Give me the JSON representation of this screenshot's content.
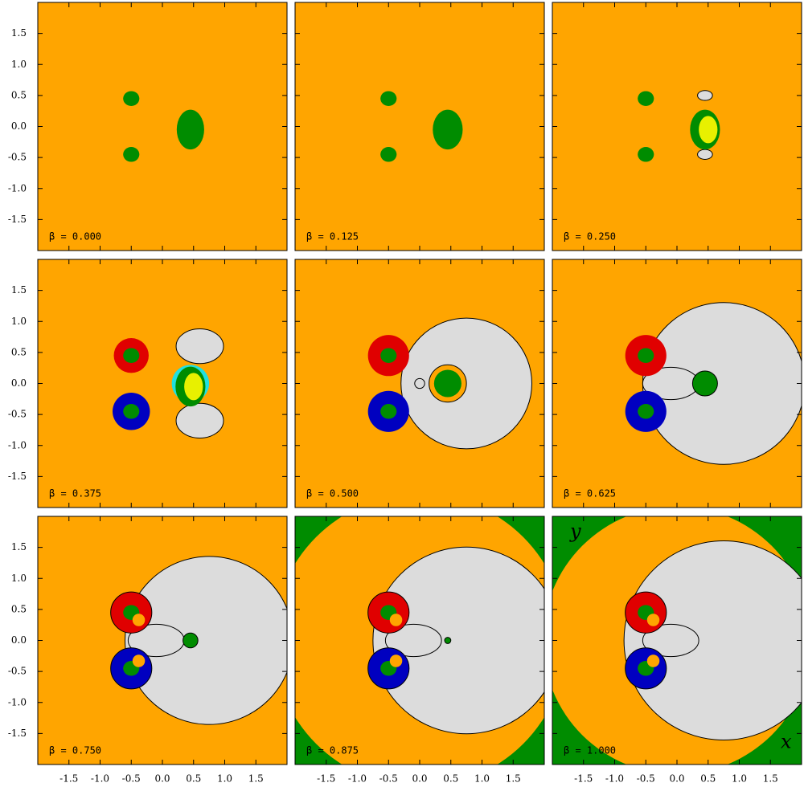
{
  "chart_data": [
    {
      "type": "basin",
      "annotation": "β = 0.000",
      "xlim": [
        -2,
        2
      ],
      "ylim": [
        -2,
        2
      ],
      "xticks": [
        -1.5,
        {
          "value": -1,
          "label": "-1.0"
        },
        -0.5,
        {
          "value": 0,
          "label": "0.0"
        },
        0.5,
        {
          "value": 1,
          "label": "1.0"
        },
        1.5
      ],
      "yticks": [
        -1.5,
        {
          "value": -1,
          "label": "-1.0"
        },
        -0.5,
        {
          "value": 0,
          "label": "0.0"
        },
        0.5,
        {
          "value": 1,
          "label": "1.0"
        },
        1.5
      ]
    },
    {
      "type": "basin",
      "annotation": "β = 0.125",
      "xlim": [
        -2,
        2
      ],
      "ylim": [
        -2,
        2
      ],
      "xticks": [
        -1.5,
        {
          "value": -1,
          "label": "-1.0"
        },
        -0.5,
        {
          "value": 0,
          "label": "0.0"
        },
        0.5,
        {
          "value": 1,
          "label": "1.0"
        },
        1.5
      ],
      "yticks": [
        -1.5,
        {
          "value": -1,
          "label": "-1.0"
        },
        -0.5,
        {
          "value": 0,
          "label": "0.0"
        },
        0.5,
        {
          "value": 1,
          "label": "1.0"
        },
        1.5
      ]
    },
    {
      "type": "basin",
      "annotation": "β = 0.250",
      "xlim": [
        -2,
        2
      ],
      "ylim": [
        -2,
        2
      ],
      "xticks": [
        -1.5,
        {
          "value": -1,
          "label": "-1.0"
        },
        -0.5,
        {
          "value": 0,
          "label": "0.0"
        },
        0.5,
        {
          "value": 1,
          "label": "1.0"
        },
        1.5
      ],
      "yticks": [
        -1.5,
        {
          "value": -1,
          "label": "-1.0"
        },
        -0.5,
        {
          "value": 0,
          "label": "0.0"
        },
        0.5,
        {
          "value": 1,
          "label": "1.0"
        },
        1.5
      ]
    },
    {
      "type": "basin",
      "annotation": "β = 0.375",
      "xlim": [
        -2,
        2
      ],
      "ylim": [
        -2,
        2
      ],
      "xticks": [
        -1.5,
        {
          "value": -1,
          "label": "-1.0"
        },
        -0.5,
        {
          "value": 0,
          "label": "0.0"
        },
        0.5,
        {
          "value": 1,
          "label": "1.0"
        },
        1.5
      ],
      "yticks": [
        -1.5,
        {
          "value": -1,
          "label": "-1.0"
        },
        -0.5,
        {
          "value": 0,
          "label": "0.0"
        },
        0.5,
        {
          "value": 1,
          "label": "1.0"
        },
        1.5
      ]
    },
    {
      "type": "basin",
      "annotation": "β = 0.500",
      "xlim": [
        -2,
        2
      ],
      "ylim": [
        -2,
        2
      ],
      "xticks": [
        -1.5,
        {
          "value": -1,
          "label": "-1.0"
        },
        -0.5,
        {
          "value": 0,
          "label": "0.0"
        },
        0.5,
        {
          "value": 1,
          "label": "1.0"
        },
        1.5
      ],
      "yticks": [
        -1.5,
        {
          "value": -1,
          "label": "-1.0"
        },
        -0.5,
        {
          "value": 0,
          "label": "0.0"
        },
        0.5,
        {
          "value": 1,
          "label": "1.0"
        },
        1.5
      ]
    },
    {
      "type": "basin",
      "annotation": "β = 0.625",
      "xlim": [
        -2,
        2
      ],
      "ylim": [
        -2,
        2
      ],
      "xticks": [
        -1.5,
        {
          "value": -1,
          "label": "-1.0"
        },
        -0.5,
        {
          "value": 0,
          "label": "0.0"
        },
        0.5,
        {
          "value": 1,
          "label": "1.0"
        },
        1.5
      ],
      "yticks": [
        -1.5,
        {
          "value": -1,
          "label": "-1.0"
        },
        -0.5,
        {
          "value": 0,
          "label": "0.0"
        },
        0.5,
        {
          "value": 1,
          "label": "1.0"
        },
        1.5
      ]
    },
    {
      "type": "basin",
      "annotation": "β = 0.750",
      "xlim": [
        -2,
        2
      ],
      "ylim": [
        -2,
        2
      ],
      "xticks": [
        -1.5,
        {
          "value": -1,
          "label": "-1.0"
        },
        -0.5,
        {
          "value": 0,
          "label": "0.0"
        },
        0.5,
        {
          "value": 1,
          "label": "1.0"
        },
        1.5
      ],
      "yticks": [
        -1.5,
        {
          "value": -1,
          "label": "-1.0"
        },
        -0.5,
        {
          "value": 0,
          "label": "0.0"
        },
        0.5,
        {
          "value": 1,
          "label": "1.0"
        },
        1.5
      ]
    },
    {
      "type": "basin",
      "annotation": "β = 0.875",
      "xlim": [
        -2,
        2
      ],
      "ylim": [
        -2,
        2
      ],
      "xticks": [
        -1.5,
        {
          "value": -1,
          "label": "-1.0"
        },
        -0.5,
        {
          "value": 0,
          "label": "0.0"
        },
        0.5,
        {
          "value": 1,
          "label": "1.0"
        },
        1.5
      ],
      "yticks": [
        -1.5,
        {
          "value": -1,
          "label": "-1.0"
        },
        -0.5,
        {
          "value": 0,
          "label": "0.0"
        },
        0.5,
        {
          "value": 1,
          "label": "1.0"
        },
        1.5
      ]
    },
    {
      "type": "basin",
      "annotation": "β = 1.000",
      "xlabel": "x",
      "ylabel": "y",
      "xlim": [
        -2,
        2
      ],
      "ylim": [
        -2,
        2
      ],
      "xticks": [
        -1.5,
        {
          "value": -1,
          "label": "-1.0"
        },
        -0.5,
        {
          "value": 0,
          "label": "0.0"
        },
        0.5,
        {
          "value": 1,
          "label": "1.0"
        },
        1.5
      ],
      "yticks": [
        -1.5,
        {
          "value": -1,
          "label": "-1.0"
        },
        -0.5,
        {
          "value": 0,
          "label": "0.0"
        },
        0.5,
        {
          "value": 1,
          "label": "1.0"
        },
        1.5
      ]
    }
  ]
}
